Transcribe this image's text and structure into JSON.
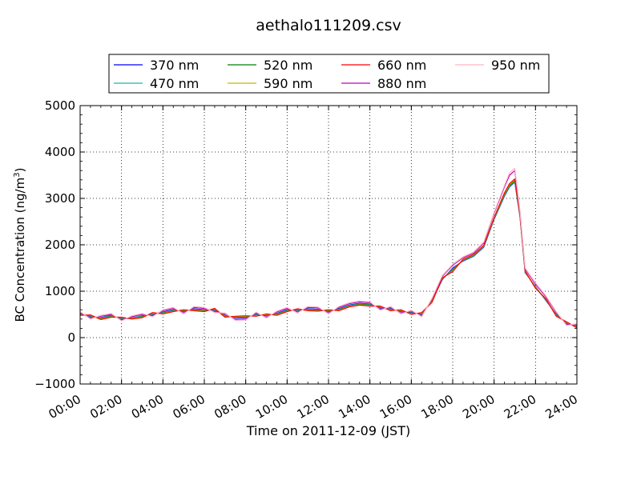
{
  "chart_data": {
    "type": "line",
    "title": "aethalo111209.csv",
    "xlabel": "Time on 2011-12-09 (JST)",
    "ylabel": "BC Concentration (ng/m³)",
    "ylabel_main": "BC Concentration (ng/m",
    "ylabel_sup": "3",
    "ylabel_tail": ")",
    "x_ticks": [
      "00:00",
      "02:00",
      "04:00",
      "06:00",
      "08:00",
      "10:00",
      "12:00",
      "14:00",
      "16:00",
      "18:00",
      "20:00",
      "22:00",
      "24:00"
    ],
    "y_ticks": [
      "−1000",
      "0",
      "1000",
      "2000",
      "3000",
      "4000",
      "5000"
    ],
    "ylim": [
      -1000,
      5000
    ],
    "xlim_hours": [
      0,
      24
    ],
    "grid": true,
    "legend_position": "top",
    "x_hours": [
      0,
      0.5,
      1,
      1.5,
      2,
      2.5,
      3,
      3.5,
      4,
      4.5,
      5,
      5.5,
      6,
      6.5,
      7,
      7.5,
      8,
      8.5,
      9,
      9.5,
      10,
      10.5,
      11,
      11.5,
      12,
      12.5,
      13,
      13.5,
      14,
      14.5,
      15,
      15.5,
      16,
      16.5,
      17,
      17.5,
      18,
      18.5,
      19,
      19.5,
      20,
      20.5,
      20.75,
      21,
      21.25,
      21.5,
      22,
      22.5,
      23,
      23.5,
      24
    ],
    "series": [
      {
        "name": "370 nm",
        "color": "#0000ff",
        "values": [
          520,
          450,
          430,
          480,
          400,
          420,
          470,
          500,
          550,
          600,
          560,
          620,
          600,
          590,
          480,
          420,
          430,
          500,
          470,
          520,
          600,
          580,
          620,
          610,
          560,
          620,
          700,
          740,
          720,
          640,
          620,
          560,
          540,
          500,
          800,
          1250,
          1500,
          1650,
          1750,
          1950,
          2550,
          3050,
          3250,
          3350,
          2600,
          1400,
          1100,
          800,
          500,
          300,
          250
        ]
      },
      {
        "name": "470 nm",
        "color": "#20b2aa",
        "values": [
          510,
          460,
          420,
          470,
          410,
          430,
          460,
          510,
          540,
          590,
          570,
          610,
          590,
          600,
          470,
          430,
          440,
          490,
          480,
          510,
          590,
          590,
          610,
          600,
          570,
          610,
          690,
          730,
          710,
          650,
          610,
          570,
          530,
          510,
          790,
          1260,
          1480,
          1660,
          1760,
          1960,
          2560,
          3060,
          3260,
          3360,
          2610,
          1410,
          1090,
          810,
          490,
          310,
          240
        ]
      },
      {
        "name": "520 nm",
        "color": "#008000",
        "values": [
          500,
          470,
          410,
          460,
          420,
          420,
          450,
          520,
          530,
          580,
          580,
          600,
          580,
          610,
          460,
          440,
          450,
          480,
          490,
          500,
          580,
          600,
          600,
          590,
          580,
          600,
          680,
          720,
          700,
          660,
          600,
          580,
          520,
          520,
          780,
          1270,
          1460,
          1670,
          1770,
          1970,
          2570,
          3080,
          3280,
          3380,
          2620,
          1420,
          1080,
          820,
          480,
          320,
          230
        ]
      },
      {
        "name": "590 nm",
        "color": "#c8b400",
        "values": [
          490,
          480,
          400,
          450,
          430,
          410,
          440,
          530,
          520,
          570,
          590,
          590,
          570,
          620,
          450,
          450,
          460,
          470,
          500,
          490,
          570,
          610,
          590,
          580,
          590,
          590,
          670,
          710,
          690,
          670,
          590,
          590,
          510,
          530,
          770,
          1280,
          1440,
          1680,
          1780,
          1980,
          2580,
          3100,
          3300,
          3400,
          2630,
          1430,
          1070,
          830,
          470,
          330,
          220
        ]
      },
      {
        "name": "660 nm",
        "color": "#ff0000",
        "values": [
          480,
          490,
          390,
          440,
          440,
          400,
          430,
          540,
          510,
          560,
          600,
          580,
          560,
          630,
          440,
          460,
          470,
          460,
          510,
          480,
          560,
          620,
          580,
          570,
          600,
          580,
          660,
          700,
          680,
          680,
          580,
          600,
          500,
          540,
          760,
          1290,
          1420,
          1690,
          1790,
          1990,
          2590,
          3120,
          3320,
          3420,
          2640,
          1440,
          1060,
          840,
          460,
          340,
          210
        ]
      },
      {
        "name": "880 nm",
        "color": "#bf00bf",
        "values": [
          530,
          420,
          460,
          500,
          380,
          450,
          500,
          470,
          580,
          630,
          530,
          650,
          630,
          560,
          510,
          390,
          400,
          530,
          440,
          550,
          630,
          550,
          650,
          640,
          530,
          650,
          730,
          770,
          750,
          610,
          650,
          530,
          570,
          470,
          830,
          1320,
          1560,
          1720,
          1820,
          2040,
          2680,
          3250,
          3500,
          3600,
          2700,
          1480,
          1150,
          880,
          540,
          280,
          280
        ]
      },
      {
        "name": "950 nm",
        "color": "#ffb6c1",
        "values": [
          560,
          400,
          480,
          520,
          360,
          470,
          520,
          450,
          600,
          650,
          510,
          670,
          650,
          540,
          530,
          370,
          380,
          550,
          420,
          570,
          650,
          530,
          670,
          660,
          510,
          670,
          750,
          790,
          770,
          590,
          670,
          510,
          590,
          450,
          850,
          1340,
          1580,
          1740,
          1840,
          2060,
          2700,
          3280,
          3550,
          3650,
          2720,
          1500,
          1180,
          900,
          560,
          260,
          300
        ]
      }
    ]
  }
}
